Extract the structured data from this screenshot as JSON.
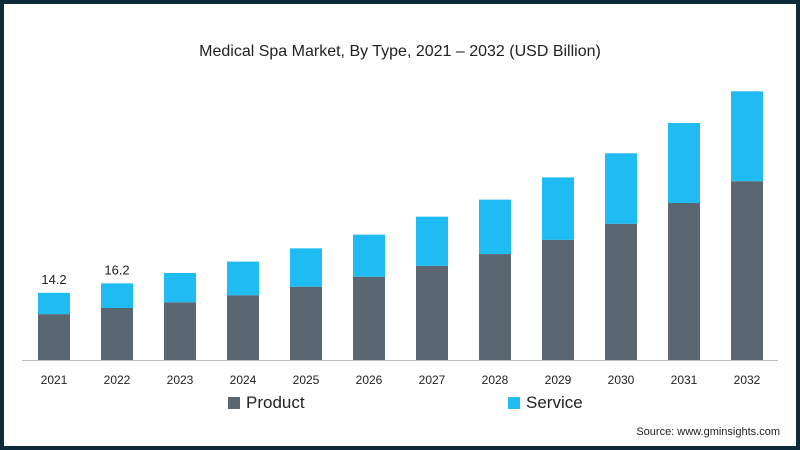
{
  "colors": {
    "product": "#5b6770",
    "service": "#1ebcf2",
    "frame": "#0d2a3a"
  },
  "source": "Source: www.gminsights.com",
  "chart_data": {
    "type": "bar",
    "stacked": true,
    "title": "Medical Spa Market, By Type, 2021 – 2032 (USD Billion)",
    "categories": [
      "2021",
      "2022",
      "2023",
      "2024",
      "2025",
      "2026",
      "2027",
      "2028",
      "2029",
      "2030",
      "2031",
      "2032"
    ],
    "series": [
      {
        "name": "Product",
        "values": [
          9.7,
          11.0,
          12.2,
          13.7,
          15.5,
          17.6,
          19.9,
          22.4,
          25.4,
          28.8,
          33.2,
          37.8
        ]
      },
      {
        "name": "Service",
        "values": [
          4.5,
          5.2,
          6.2,
          7.1,
          8.1,
          8.9,
          10.4,
          11.5,
          13.2,
          14.9,
          16.9,
          19.0
        ]
      }
    ],
    "data_labels": [
      "14.2",
      "16.2",
      "",
      "",
      "",
      "",
      "",
      "",
      "",
      "",
      "",
      ""
    ],
    "ylim": [
      0,
      57.5
    ],
    "grid": false,
    "legend_position": "bottom"
  }
}
